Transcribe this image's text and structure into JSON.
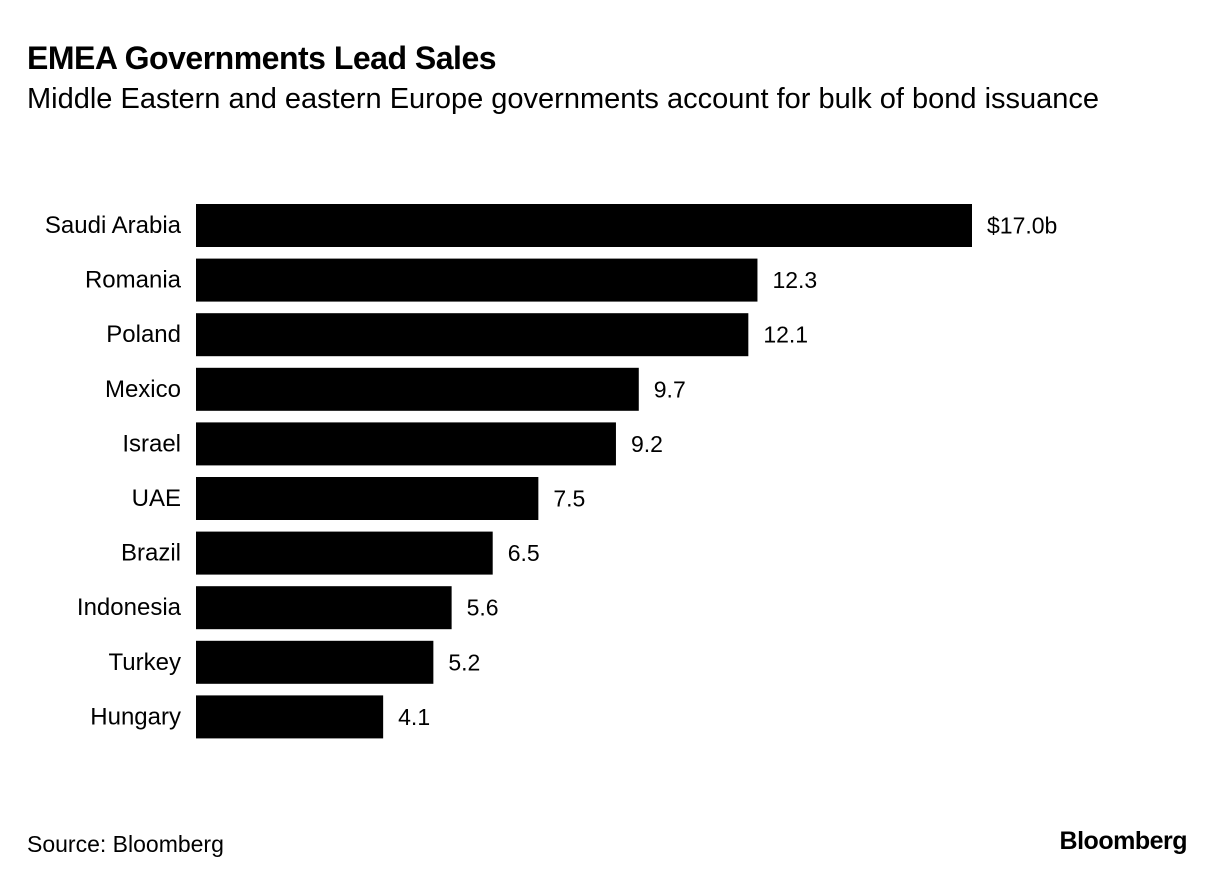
{
  "header": {
    "title": "EMEA Governments Lead Sales",
    "subtitle": "Middle Eastern and eastern Europe governments account for bulk of bond issuance"
  },
  "footer": {
    "source": "Source: Bloomberg",
    "brand": "Bloomberg"
  },
  "colors": {
    "bar": "#000000",
    "text": "#000000",
    "background": "#ffffff"
  },
  "chart_data": {
    "type": "bar",
    "orientation": "horizontal",
    "title": "EMEA Governments Lead Sales",
    "subtitle": "Middle Eastern and eastern Europe governments account for bulk of bond issuance",
    "categories": [
      "Saudi Arabia",
      "Romania",
      "Poland",
      "Mexico",
      "Israel",
      "UAE",
      "Brazil",
      "Indonesia",
      "Turkey",
      "Hungary"
    ],
    "values": [
      17.0,
      12.3,
      12.1,
      9.7,
      9.2,
      7.5,
      6.5,
      5.6,
      5.2,
      4.1
    ],
    "value_labels": [
      "$17.0b",
      "12.3",
      "12.1",
      "9.7",
      "9.2",
      "7.5",
      "6.5",
      "5.6",
      "5.2",
      "4.1"
    ],
    "xlabel": "",
    "ylabel": "",
    "xlim": [
      0,
      17.0
    ],
    "grid": false,
    "legend": "none"
  }
}
